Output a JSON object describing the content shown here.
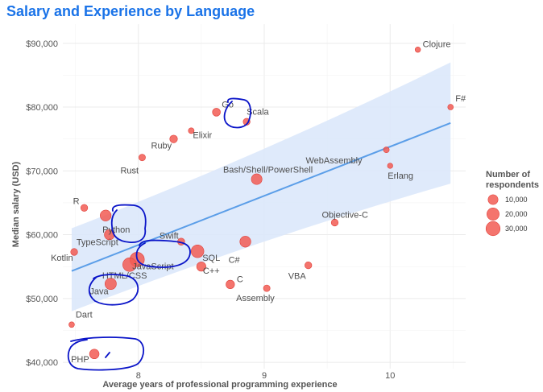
{
  "chart_data": {
    "type": "scatter",
    "title": "Salary and Experience by Language",
    "xlabel": "Average years of professional programming experience",
    "ylabel": "Median salary (USD)",
    "xlim": [
      7.4,
      10.6
    ],
    "ylim": [
      39000,
      93000
    ],
    "x_ticks": [
      8,
      9,
      10
    ],
    "y_ticks": [
      40000,
      50000,
      60000,
      70000,
      80000,
      90000
    ],
    "y_tick_labels": [
      "$40,000",
      "$50,000",
      "$60,000",
      "$70,000",
      "$80,000",
      "$90,000"
    ],
    "grid": true,
    "trend": {
      "x": [
        7.47,
        10.48
      ],
      "y": [
        54300,
        77500
      ],
      "ci_lower": [
        48000,
        68000
      ],
      "ci_upper": [
        61000,
        87000
      ]
    },
    "legend": {
      "title_lines": [
        "Number of",
        "respondents"
      ],
      "placement": "right",
      "entries": [
        {
          "label": "10,000",
          "respondents": 10000
        },
        {
          "label": "20,000",
          "respondents": 20000
        },
        {
          "label": "30,000",
          "respondents": 30000
        }
      ]
    },
    "points": [
      {
        "label": "Clojure",
        "x": 10.22,
        "y": 89000,
        "respondents": 600
      },
      {
        "label": "F#",
        "x": 10.48,
        "y": 80000,
        "respondents": 700
      },
      {
        "label": "Go",
        "x": 8.62,
        "y": 79200,
        "respondents": 4500
      },
      {
        "label": "Scala",
        "x": 8.86,
        "y": 77700,
        "respondents": 2500
      },
      {
        "label": "Elixir",
        "x": 8.42,
        "y": 76300,
        "respondents": 900
      },
      {
        "label": "Ruby",
        "x": 8.28,
        "y": 75000,
        "respondents": 4000
      },
      {
        "label": "Rust",
        "x": 8.03,
        "y": 72100,
        "respondents": 2000
      },
      {
        "label": "WebAssembly",
        "x": 9.97,
        "y": 73300,
        "respondents": 900
      },
      {
        "label": "Erlang",
        "x": 10.0,
        "y": 70800,
        "respondents": 500
      },
      {
        "label": "Bash/Shell/PowerShell",
        "x": 8.94,
        "y": 68700,
        "respondents": 13000
      },
      {
        "label": "R",
        "x": 7.57,
        "y": 64200,
        "respondents": 2500
      },
      {
        "label": "Python",
        "x": 7.74,
        "y": 63000,
        "respondents": 14000
      },
      {
        "label": "Objective-C",
        "x": 9.56,
        "y": 61900,
        "respondents": 2500
      },
      {
        "label": "TypeScript",
        "x": 7.77,
        "y": 60000,
        "respondents": 11000
      },
      {
        "label": "Swift",
        "x": 8.34,
        "y": 58900,
        "respondents": 2800
      },
      {
        "label": "C#",
        "x": 8.85,
        "y": 58900,
        "respondents": 14000
      },
      {
        "label": "Kotlin",
        "x": 7.49,
        "y": 57300,
        "respondents": 2500
      },
      {
        "label": "JavaScript",
        "x": 7.99,
        "y": 56100,
        "respondents": 32000
      },
      {
        "label": "SQL",
        "x": 8.47,
        "y": 57400,
        "respondents": 22000
      },
      {
        "label": "HTML/CSS",
        "x": 7.93,
        "y": 55300,
        "respondents": 27000
      },
      {
        "label": "C++",
        "x": 8.5,
        "y": 55000,
        "respondents": 8000
      },
      {
        "label": "VBA",
        "x": 9.35,
        "y": 55200,
        "respondents": 2500
      },
      {
        "label": "C",
        "x": 8.73,
        "y": 52200,
        "respondents": 6000
      },
      {
        "label": "Java",
        "x": 7.78,
        "y": 52300,
        "respondents": 16000
      },
      {
        "label": "Assembly",
        "x": 9.02,
        "y": 51600,
        "respondents": 2000
      },
      {
        "label": "Dart",
        "x": 7.47,
        "y": 45900,
        "respondents": 700
      },
      {
        "label": "PHP",
        "x": 7.65,
        "y": 41300,
        "respondents": 9000
      }
    ],
    "colors": {
      "title": "#1a73e8",
      "point": "#f25c54",
      "point_stroke": "#e0403a",
      "trend_line": "#5b9ee8",
      "ribbon": "#dbe8fb",
      "grid": "#ebebeb",
      "annotation": "#0a14c8"
    }
  }
}
